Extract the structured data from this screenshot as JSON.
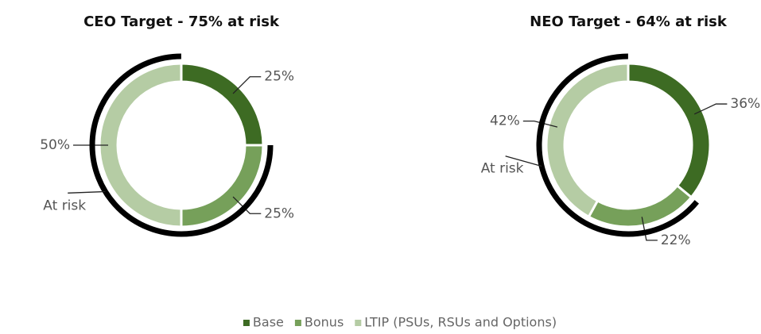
{
  "chart_data": [
    {
      "type": "pie",
      "title": "CEO Target - 75% at risk",
      "annotation": "At risk",
      "values": [
        25,
        25,
        50
      ],
      "value_labels": [
        "25%",
        "25%",
        "50%"
      ]
    },
    {
      "type": "pie",
      "title": "NEO Target - 64% at risk",
      "annotation": "At risk",
      "values": [
        36,
        22,
        42
      ],
      "value_labels": [
        "36%",
        "22%",
        "42%"
      ]
    }
  ],
  "legend": {
    "items": [
      "Base",
      "Bonus",
      "LTIP (PSUs, RSUs and Options)"
    ],
    "colors": [
      "#3d6b23",
      "#76a05a",
      "#b5cca4"
    ]
  }
}
